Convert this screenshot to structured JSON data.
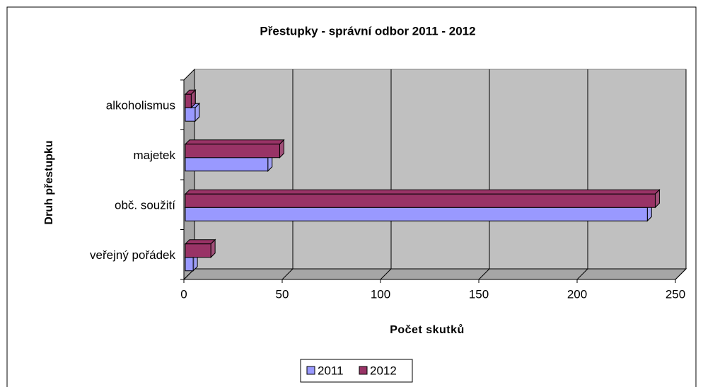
{
  "chart_data": {
    "type": "bar3d_horizontal",
    "title": "Přestupky - správní odbor 2011 - 2012",
    "x_label": "Počet skutků",
    "y_label": "Druh přestupku",
    "categories": [
      "alkoholismus",
      "majetek",
      "obč. soužití",
      "veřejný pořádek"
    ],
    "series": [
      {
        "name": "2011",
        "color": "#9999ff",
        "values": [
          5,
          42,
          235,
          4
        ]
      },
      {
        "name": "2012",
        "color": "#993366",
        "values": [
          3,
          48,
          239,
          13
        ]
      }
    ],
    "xlim": [
      0,
      250
    ],
    "xticks": [
      0,
      50,
      100,
      150,
      200,
      250
    ],
    "grid": true,
    "legend": "bottom"
  }
}
